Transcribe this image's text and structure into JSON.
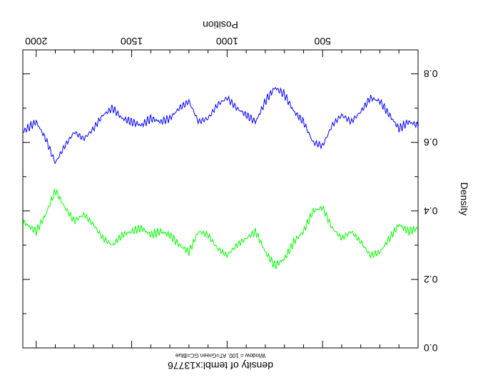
{
  "chart_data": {
    "type": "line",
    "title": "density of tembl:x13776",
    "subtitle": "Window = 100. AT=Green GC=Blue",
    "xlabel": "Position",
    "ylabel": "Density",
    "xlim": [
      0,
      2070
    ],
    "ylim": [
      0.0,
      0.87
    ],
    "x_ticks": [
      500,
      1000,
      1500,
      2000
    ],
    "x_tick_labels": [
      "500",
      "1000",
      "1500",
      "2000"
    ],
    "y_ticks": [
      0.0,
      0.2,
      0.4,
      0.6,
      0.8
    ],
    "y_tick_labels": [
      "0.0",
      "0.2",
      "0.4",
      "0.6",
      "0.8"
    ],
    "orientation": "rotated-180",
    "grid": false,
    "series": [
      {
        "name": "AT",
        "color": "#00ff00",
        "x": [
          0,
          50,
          100,
          150,
          200,
          250,
          300,
          350,
          400,
          450,
          500,
          550,
          600,
          650,
          700,
          750,
          800,
          850,
          900,
          950,
          1000,
          1050,
          1100,
          1150,
          1200,
          1250,
          1300,
          1350,
          1400,
          1450,
          1500,
          1550,
          1600,
          1650,
          1700,
          1750,
          1800,
          1850,
          1900,
          1950,
          2000,
          2050,
          2070
        ],
        "values": [
          0.35,
          0.34,
          0.36,
          0.32,
          0.28,
          0.27,
          0.31,
          0.34,
          0.32,
          0.35,
          0.41,
          0.4,
          0.34,
          0.31,
          0.26,
          0.24,
          0.28,
          0.34,
          0.32,
          0.3,
          0.27,
          0.29,
          0.33,
          0.34,
          0.28,
          0.3,
          0.33,
          0.34,
          0.33,
          0.35,
          0.34,
          0.33,
          0.3,
          0.32,
          0.36,
          0.39,
          0.37,
          0.41,
          0.46,
          0.39,
          0.34,
          0.36,
          0.37
        ]
      },
      {
        "name": "GC",
        "color": "#0000ff",
        "x": [
          0,
          50,
          100,
          150,
          200,
          250,
          300,
          350,
          400,
          450,
          500,
          550,
          600,
          650,
          700,
          750,
          800,
          850,
          900,
          950,
          1000,
          1050,
          1100,
          1150,
          1200,
          1250,
          1300,
          1350,
          1400,
          1450,
          1500,
          1550,
          1600,
          1650,
          1700,
          1750,
          1800,
          1850,
          1900,
          1950,
          2000,
          2050,
          2070
        ],
        "values": [
          0.65,
          0.66,
          0.64,
          0.68,
          0.72,
          0.73,
          0.69,
          0.66,
          0.68,
          0.65,
          0.59,
          0.6,
          0.66,
          0.69,
          0.74,
          0.76,
          0.72,
          0.66,
          0.68,
          0.7,
          0.73,
          0.71,
          0.67,
          0.66,
          0.72,
          0.7,
          0.67,
          0.66,
          0.67,
          0.65,
          0.66,
          0.67,
          0.7,
          0.68,
          0.64,
          0.61,
          0.63,
          0.59,
          0.54,
          0.61,
          0.66,
          0.64,
          0.63
        ]
      }
    ]
  }
}
